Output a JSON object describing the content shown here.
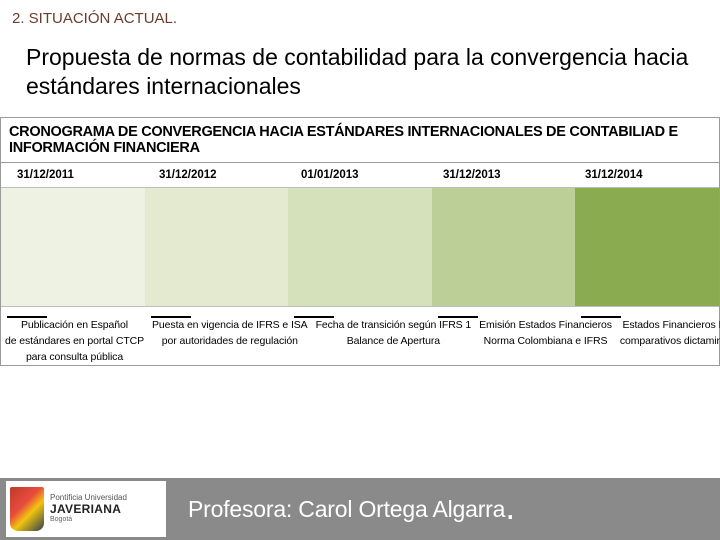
{
  "section_number": "2. SITUACIÓN ACTUAL.",
  "title": "Propuesta de normas de contabilidad para la convergencia hacia estándares internacionales",
  "chart": {
    "header": "CRONOGRAMA DE CONVERGENCIA HACIA ESTÁNDARES INTERNACIONALES DE CONTABILIAD E INFORMACIÓN FINANCIERA",
    "dates": [
      "31/12/2011",
      "31/12/2012",
      "01/01/2013",
      "31/12/2013",
      "31/12/2014"
    ],
    "band_colors": [
      "#eef2e2",
      "#e3ead0",
      "#d5e1ba",
      "#bccf96",
      "#8aab4f"
    ],
    "captions": [
      [
        "Publicación en Español",
        "de estándares en portal CTCP",
        "para consulta pública"
      ],
      [
        "Puesta en vigencia de IFRS e ISA",
        "por autoridades de regulación"
      ],
      [
        "Fecha de transición según IFRS 1",
        "Balance de Apertura"
      ],
      [
        "Emisión Estados Financieros",
        "Norma Colombiana e IFRS"
      ],
      [
        "Estados Financieros IFRS",
        "comparativos dictaminados"
      ]
    ]
  },
  "footer": {
    "logo_line1": "Pontificia Universidad",
    "logo_line2": "JAVERIANA",
    "logo_line3": "Bogotá",
    "professor_label": "Profesora: ",
    "professor_name": "Carol Ortega Algarra",
    "dot": "."
  },
  "colors": {
    "section_color": "#6a3d2a",
    "footer_bg": "#8a8a8a",
    "footer_text": "#ffffff"
  }
}
